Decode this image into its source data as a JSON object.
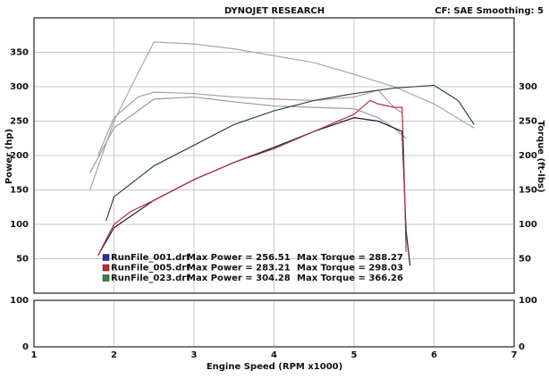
{
  "chart_data": {
    "type": "line",
    "title": "DYNOJET RESEARCH",
    "settings_text": "CF: SAE  Smoothing: 5",
    "y_label": "Power (hp)",
    "y2_label": "Torque (ft-lbs)",
    "x_label": "Engine Speed (RPM x1000)",
    "xlim": [
      1,
      7
    ],
    "xticks": [
      1,
      2,
      3,
      4,
      5,
      6,
      7
    ],
    "ylim": [
      0,
      400
    ],
    "yticks": [
      50,
      100,
      150,
      200,
      250,
      300,
      350
    ],
    "y2lim": [
      0,
      400
    ],
    "y2ticks": [
      50,
      100,
      150,
      200,
      250,
      300
    ],
    "sub_ylim": [
      0,
      100
    ],
    "sub_yticks": [
      0,
      100
    ],
    "sub_y2ticks": [
      0,
      100
    ],
    "grid": true,
    "runs": [
      {
        "name": "RunFile_001.drf",
        "color": "#2a2aa8",
        "max_power_text": "Max Power = 256.51",
        "max_torque_text": "Max Torque = 288.27",
        "power": {
          "color": "#1c1c3c",
          "x": [
            1.8,
            2.0,
            2.5,
            3.0,
            3.5,
            4.0,
            4.5,
            5.0,
            5.3,
            5.5,
            5.6,
            5.65,
            5.7
          ],
          "values": [
            55,
            95,
            135,
            165,
            190,
            212,
            235,
            255,
            250,
            240,
            235,
            90,
            40
          ]
        },
        "torque": {
          "color": "#9a9aa8",
          "x": [
            1.7,
            2.0,
            2.5,
            3.0,
            3.5,
            4.0,
            4.5,
            5.0,
            5.3,
            5.5,
            5.65
          ],
          "values": [
            175,
            240,
            282,
            285,
            278,
            272,
            270,
            268,
            255,
            240,
            225
          ]
        }
      },
      {
        "name": "RunFile_005.drf",
        "color": "#c8283c",
        "max_power_text": "Max Power = 283.21",
        "max_torque_text": "Max Torque = 298.03",
        "power": {
          "color": "#b03040",
          "x": [
            1.8,
            2.0,
            2.2,
            2.5,
            3.0,
            3.5,
            4.0,
            4.5,
            5.0,
            5.2,
            5.3,
            5.5,
            5.6,
            5.62,
            5.65
          ],
          "values": [
            55,
            100,
            118,
            135,
            165,
            190,
            210,
            235,
            260,
            280,
            275,
            270,
            270,
            200,
            60
          ]
        },
        "torque": {
          "color": "#b89aa0",
          "x": [
            1.8,
            2.0,
            2.3,
            2.5,
            3.0,
            3.5,
            4.0,
            4.5,
            5.0,
            5.3,
            5.5,
            5.6
          ],
          "values": [
            200,
            255,
            285,
            292,
            290,
            285,
            282,
            280,
            285,
            295,
            270,
            262
          ]
        }
      },
      {
        "name": "RunFile_023.drf",
        "color": "#2e8a3a",
        "max_power_text": "Max Power = 304.28",
        "max_torque_text": "Max Torque = 366.26",
        "power": {
          "color": "#2a4a38",
          "x": [
            1.9,
            2.0,
            2.5,
            3.0,
            3.5,
            4.0,
            4.5,
            5.0,
            5.5,
            6.0,
            6.3,
            6.5
          ],
          "values": [
            105,
            140,
            185,
            215,
            245,
            265,
            280,
            290,
            298,
            302,
            280,
            245
          ]
        },
        "torque": {
          "color": "#a0aaa4",
          "x": [
            1.7,
            2.0,
            2.3,
            2.5,
            3.0,
            3.5,
            4.0,
            4.5,
            5.0,
            5.5,
            6.0,
            6.5
          ],
          "values": [
            150,
            250,
            320,
            365,
            362,
            355,
            345,
            335,
            318,
            300,
            275,
            240
          ]
        }
      }
    ]
  }
}
